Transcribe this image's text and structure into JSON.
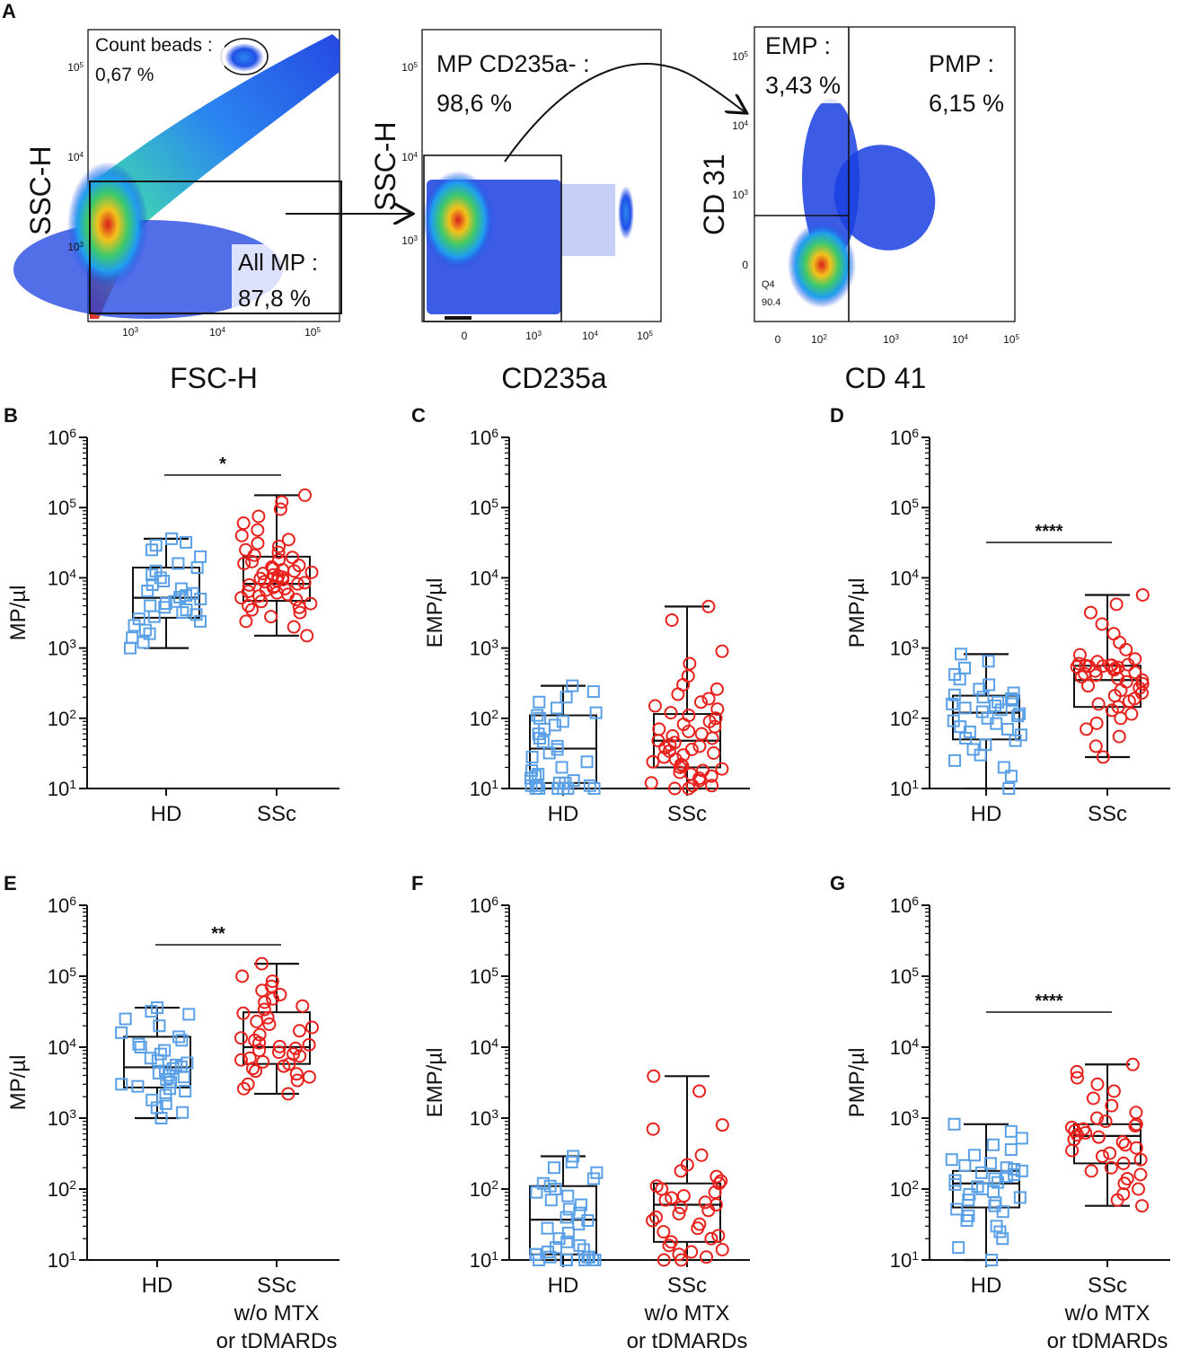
{
  "figure_label": "A",
  "flow": {
    "plot1": {
      "ylabel": "SSC-H",
      "xlabel": "FSC-H",
      "gate_beads_label": "Count beads :",
      "gate_beads_pct": "0,67 %",
      "gate_mp_label": "All MP :",
      "gate_mp_pct": "87,8 %",
      "yticks": [
        "10^5",
        "10^4",
        "10^3"
      ],
      "xticks": [
        "10^3",
        "10^4",
        "10^5"
      ]
    },
    "plot2": {
      "ylabel": "SSC-H",
      "xlabel": "CD235a",
      "gate_label": "MP CD235a- :",
      "gate_pct": "98,6 %",
      "yticks": [
        "10^5",
        "10^4",
        "10^3"
      ],
      "xticks": [
        "0",
        "10^3",
        "10^4",
        "10^5"
      ]
    },
    "plot3": {
      "ylabel": "CD 31",
      "xlabel": "CD 41",
      "gate_emp_label": "EMP :",
      "gate_emp_pct": "3,43 %",
      "gate_pmp_label": "PMP :",
      "gate_pmp_pct": "6,15 %",
      "q4_label": "Q4",
      "q4_value": "90.4",
      "yticks": [
        "10^5",
        "10^4",
        "10^3",
        "0"
      ],
      "xticks": [
        "0",
        "10^2",
        "10^3",
        "10^4",
        "10^5"
      ]
    }
  },
  "chart_data": [
    {
      "panel": "B",
      "type": "boxplot",
      "ylabel": "MP/µl",
      "yscale": "log",
      "ylim": [
        10,
        1000000
      ],
      "yticks": [
        "10^1",
        "10^2",
        "10^3",
        "10^4",
        "10^5",
        "10^6"
      ],
      "significance": "*",
      "categories": [
        {
          "label": [
            "HD"
          ],
          "color": "#5aa0e6",
          "marker": "square",
          "min": 1000,
          "q1": 2700,
          "median": 5200,
          "q3": 14000,
          "max": 36000,
          "points": [
            1000,
            1200,
            1400,
            1600,
            1800,
            2100,
            2400,
            2600,
            2800,
            3000,
            3200,
            3500,
            3800,
            4000,
            4300,
            4600,
            5000,
            5300,
            5600,
            6000,
            6500,
            7000,
            8000,
            9000,
            10000,
            11000,
            12500,
            14000,
            16000,
            20000,
            25000,
            29000,
            32000,
            36000
          ]
        },
        {
          "label": [
            "SSc"
          ],
          "color": "#e8211d",
          "marker": "circle",
          "min": 1500,
          "q1": 4700,
          "median": 8200,
          "q3": 20000,
          "max": 150000,
          "points": [
            1500,
            2000,
            2400,
            2800,
            3200,
            3500,
            3800,
            4000,
            4300,
            4600,
            4900,
            5200,
            5500,
            5800,
            6100,
            6400,
            6700,
            7000,
            7300,
            7600,
            7900,
            8200,
            8500,
            8800,
            9100,
            9400,
            9800,
            10200,
            10600,
            11000,
            11500,
            12000,
            12500,
            13000,
            13600,
            14200,
            15000,
            16000,
            17000,
            18000,
            19500,
            21000,
            23000,
            25000,
            28000,
            31000,
            35000,
            40000,
            48000,
            60000,
            75000,
            95000,
            120000,
            150000
          ]
        }
      ]
    },
    {
      "panel": "C",
      "type": "boxplot",
      "ylabel": "EMP/µl",
      "yscale": "log",
      "ylim": [
        10,
        1000000
      ],
      "yticks": [
        "10^1",
        "10^2",
        "10^3",
        "10^4",
        "10^5",
        "10^6"
      ],
      "significance": "",
      "categories": [
        {
          "label": [
            "HD"
          ],
          "color": "#5aa0e6",
          "marker": "square",
          "min": 10,
          "q1": 12,
          "median": 37,
          "q3": 110,
          "max": 290,
          "points": [
            10,
            10,
            10,
            10,
            10,
            10,
            11,
            11,
            11,
            12,
            12,
            13,
            14,
            15,
            16,
            18,
            20,
            24,
            28,
            32,
            36,
            40,
            46,
            52,
            60,
            70,
            80,
            90,
            100,
            110,
            120,
            140,
            170,
            200,
            240,
            290
          ]
        },
        {
          "label": [
            "SSc"
          ],
          "color": "#e8211d",
          "marker": "circle",
          "min": 10,
          "q1": 20,
          "median": 48,
          "q3": 115,
          "max": 3900,
          "points": [
            10,
            10,
            11,
            11,
            12,
            13,
            14,
            15,
            16,
            17,
            18,
            19,
            20,
            21,
            22,
            24,
            26,
            28,
            30,
            32,
            34,
            36,
            38,
            40,
            42,
            45,
            48,
            52,
            56,
            60,
            65,
            70,
            76,
            82,
            90,
            100,
            110,
            120,
            135,
            150,
            170,
            190,
            220,
            260,
            300,
            400,
            600,
            900,
            2500,
            3900
          ]
        }
      ]
    },
    {
      "panel": "D",
      "type": "boxplot",
      "ylabel": "PMP/µl",
      "yscale": "log",
      "ylim": [
        10,
        1000000
      ],
      "yticks": [
        "10^1",
        "10^2",
        "10^3",
        "10^4",
        "10^5",
        "10^6"
      ],
      "significance": "****",
      "categories": [
        {
          "label": [
            "HD"
          ],
          "color": "#5aa0e6",
          "marker": "square",
          "min": 10,
          "q1": 50,
          "median": 120,
          "q3": 210,
          "max": 820,
          "points": [
            10,
            15,
            20,
            25,
            30,
            36,
            42,
            48,
            52,
            58,
            64,
            70,
            76,
            84,
            92,
            100,
            108,
            116,
            124,
            132,
            140,
            150,
            160,
            170,
            180,
            190,
            200,
            215,
            230,
            260,
            300,
            360,
            420,
            520,
            650,
            820
          ]
        },
        {
          "label": [
            "SSc"
          ],
          "color": "#e8211d",
          "marker": "circle",
          "min": 28,
          "q1": 145,
          "median": 350,
          "q3": 560,
          "max": 5700,
          "points": [
            28,
            40,
            55,
            70,
            85,
            100,
            115,
            130,
            145,
            160,
            175,
            190,
            210,
            230,
            250,
            270,
            290,
            310,
            330,
            350,
            370,
            390,
            410,
            430,
            450,
            470,
            490,
            510,
            530,
            540,
            550,
            555,
            560,
            565,
            570,
            580,
            600,
            640,
            700,
            800,
            950,
            1200,
            1600,
            2200,
            3200,
            4200,
            5700
          ]
        }
      ]
    },
    {
      "panel": "E",
      "type": "boxplot",
      "ylabel": "MP/µl",
      "yscale": "log",
      "ylim": [
        10,
        1000000
      ],
      "yticks": [
        "10^1",
        "10^2",
        "10^3",
        "10^4",
        "10^5",
        "10^6"
      ],
      "significance": "**",
      "categories": [
        {
          "label": [
            "HD"
          ],
          "color": "#5aa0e6",
          "marker": "square",
          "min": 1000,
          "q1": 2700,
          "median": 5200,
          "q3": 14000,
          "max": 36000,
          "points": [
            1000,
            1200,
            1400,
            1600,
            1800,
            2100,
            2400,
            2600,
            2800,
            3000,
            3200,
            3500,
            3800,
            4000,
            4300,
            4600,
            5000,
            5300,
            5600,
            6000,
            6500,
            7000,
            8000,
            9000,
            10000,
            11000,
            12500,
            14000,
            16000,
            20000,
            25000,
            29000,
            32000,
            36000
          ]
        },
        {
          "label": [
            "SSc",
            "w/o MTX",
            "or tDMARDs"
          ],
          "color": "#e8211d",
          "marker": "circle",
          "min": 2200,
          "q1": 5800,
          "median": 10000,
          "q3": 31000,
          "max": 150000,
          "points": [
            2200,
            2600,
            3000,
            3400,
            3800,
            4200,
            4600,
            5000,
            5400,
            5800,
            6200,
            6600,
            7000,
            7500,
            8000,
            8500,
            9000,
            9600,
            10200,
            10800,
            11500,
            12500,
            13500,
            15000,
            17000,
            19000,
            21000,
            23000,
            26000,
            30000,
            34000,
            38000,
            43000,
            48000,
            55000,
            63000,
            72000,
            85000,
            100000,
            150000
          ]
        }
      ]
    },
    {
      "panel": "F",
      "type": "boxplot",
      "ylabel": "EMP/µl",
      "yscale": "log",
      "ylim": [
        10,
        1000000
      ],
      "yticks": [
        "10^1",
        "10^2",
        "10^3",
        "10^4",
        "10^5",
        "10^6"
      ],
      "significance": "",
      "categories": [
        {
          "label": [
            "HD"
          ],
          "color": "#5aa0e6",
          "marker": "square",
          "min": 10,
          "q1": 12,
          "median": 37,
          "q3": 110,
          "max": 290,
          "points": [
            10,
            10,
            10,
            10,
            10,
            10,
            11,
            11,
            11,
            12,
            12,
            13,
            14,
            15,
            16,
            18,
            20,
            24,
            28,
            32,
            36,
            40,
            46,
            52,
            60,
            70,
            80,
            90,
            100,
            110,
            120,
            140,
            170,
            200,
            240,
            290
          ]
        },
        {
          "label": [
            "SSc",
            "w/o MTX",
            "or tDMARDs"
          ],
          "color": "#e8211d",
          "marker": "circle",
          "min": 10,
          "q1": 18,
          "median": 60,
          "q3": 120,
          "max": 3900,
          "points": [
            10,
            10,
            11,
            12,
            13,
            14,
            16,
            18,
            20,
            22,
            25,
            28,
            32,
            36,
            40,
            45,
            50,
            55,
            60,
            65,
            70,
            75,
            80,
            90,
            100,
            110,
            120,
            130,
            150,
            180,
            220,
            300,
            700,
            800,
            2400,
            3900
          ]
        }
      ]
    },
    {
      "panel": "G",
      "type": "boxplot",
      "ylabel": "PMP/µl",
      "yscale": "log",
      "ylim": [
        10,
        1000000
      ],
      "yticks": [
        "10^1",
        "10^2",
        "10^3",
        "10^4",
        "10^5",
        "10^6"
      ],
      "significance": "****",
      "categories": [
        {
          "label": [
            "HD"
          ],
          "color": "#5aa0e6",
          "marker": "square",
          "min": 10,
          "q1": 55,
          "median": 120,
          "q3": 180,
          "max": 820,
          "points": [
            10,
            15,
            20,
            25,
            30,
            36,
            42,
            48,
            52,
            58,
            64,
            70,
            76,
            84,
            92,
            100,
            108,
            116,
            124,
            132,
            140,
            150,
            160,
            170,
            180,
            190,
            200,
            215,
            230,
            260,
            300,
            360,
            420,
            520,
            650,
            820
          ]
        },
        {
          "label": [
            "SSc",
            "w/o MTX",
            "or tDMARDs"
          ],
          "color": "#e8211d",
          "marker": "circle",
          "min": 58,
          "q1": 230,
          "median": 560,
          "q3": 820,
          "max": 5700,
          "points": [
            58,
            70,
            85,
            100,
            120,
            140,
            160,
            180,
            200,
            230,
            260,
            290,
            320,
            350,
            380,
            420,
            460,
            500,
            540,
            580,
            620,
            660,
            700,
            740,
            780,
            820,
            900,
            1000,
            1200,
            1500,
            1900,
            2400,
            3000,
            3700,
            4500,
            5700
          ]
        }
      ]
    }
  ]
}
